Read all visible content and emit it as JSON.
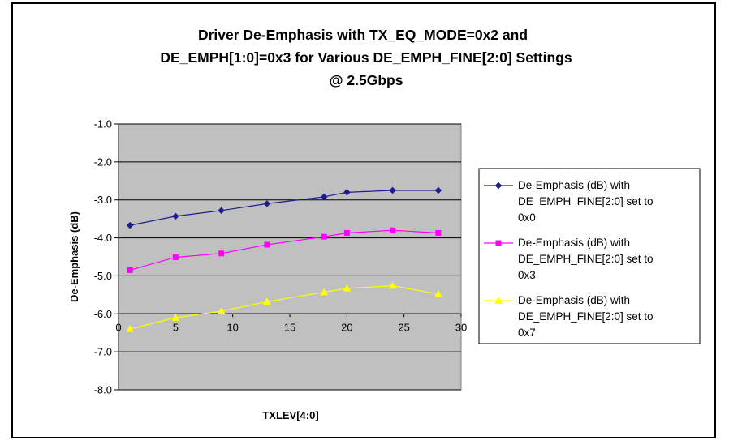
{
  "chart_data": {
    "type": "line",
    "title_lines": [
      "Driver De-Emphasis with TX_EQ_MODE=0x2 and",
      "DE_EMPH[1:0]=0x3 for Various DE_EMPH_FINE[2:0] Settings",
      "@ 2.5Gbps"
    ],
    "xlabel": "TXLEV[4:0]",
    "ylabel": "De-Emphasis (dB)",
    "xlim": [
      0,
      30
    ],
    "ylim": [
      -8.0,
      -1.0
    ],
    "x_ticks": [
      "0",
      "5",
      "10",
      "15",
      "20",
      "25",
      "30"
    ],
    "y_ticks": [
      "-1.0",
      "-2.0",
      "-3.0",
      "-4.0",
      "-5.0",
      "-6.0",
      "-7.0",
      "-8.0"
    ],
    "grid": "horizontal",
    "legend_position": "right",
    "x": [
      1,
      5,
      9,
      13,
      18,
      20,
      24,
      28
    ],
    "series": [
      {
        "name_lines": [
          "De-Emphasis (dB) with",
          "DE_EMPH_FINE[2:0] set to",
          "0x0"
        ],
        "color": "#1f1f8c",
        "marker": "diamond",
        "values": [
          -3.67,
          -3.43,
          -3.28,
          -3.1,
          -2.92,
          -2.8,
          -2.75,
          -2.75
        ]
      },
      {
        "name_lines": [
          "De-Emphasis (dB) with",
          "DE_EMPH_FINE[2:0] set to",
          "0x3"
        ],
        "color": "#ff00ff",
        "marker": "square",
        "values": [
          -4.85,
          -4.51,
          -4.41,
          -4.18,
          -3.97,
          -3.87,
          -3.8,
          -3.87
        ]
      },
      {
        "name_lines": [
          "De-Emphasis (dB) with",
          "DE_EMPH_FINE[2:0] set to",
          "0x7"
        ],
        "color": "#ffff00",
        "marker": "triangle",
        "values": [
          -6.4,
          -6.1,
          -5.93,
          -5.68,
          -5.43,
          -5.33,
          -5.26,
          -5.48
        ]
      }
    ]
  }
}
